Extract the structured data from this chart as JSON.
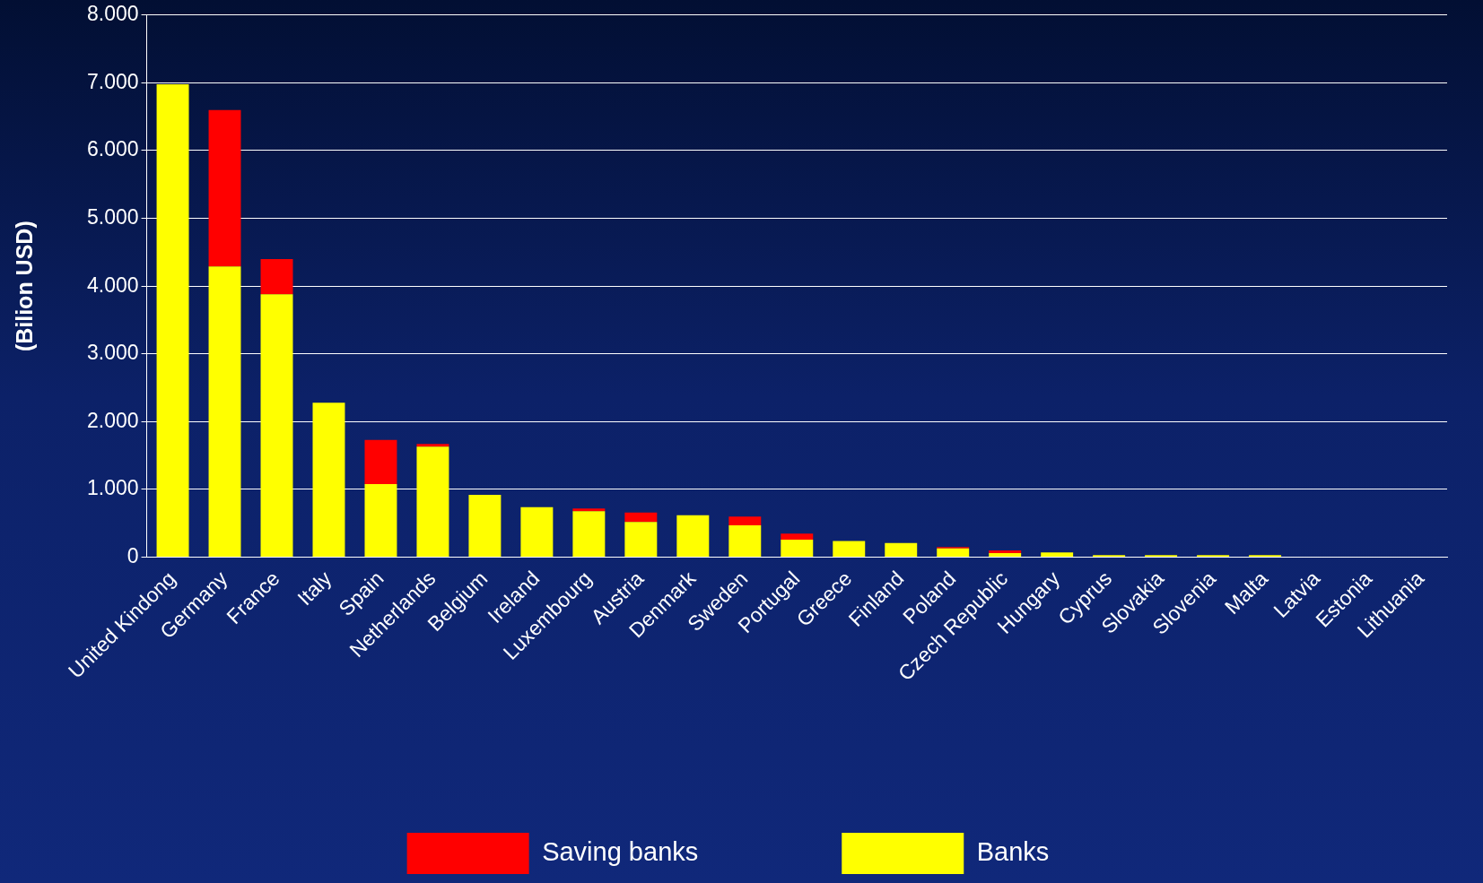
{
  "chart_data": {
    "type": "bar",
    "stacked": true,
    "ylabel": "(Bilion USD)",
    "categories": [
      "United Kindong",
      "Germany",
      "France",
      "Italy",
      "Spain",
      "Netherlands",
      "Belgium",
      "Ireland",
      "Luxembourg",
      "Austria",
      "Denmark",
      "Sweden",
      "Portugal",
      "Greece",
      "Finland",
      "Poland",
      "Czech Republic",
      "Hungary",
      "Cyprus",
      "Slovakia",
      "Slovenia",
      "Malta",
      "Latvia",
      "Estonia",
      "Lithuania"
    ],
    "series": [
      {
        "name": "Banks",
        "color": "#ffff00",
        "values": [
          6980,
          4290,
          3880,
          2280,
          1080,
          1630,
          920,
          740,
          680,
          520,
          620,
          470,
          260,
          240,
          210,
          130,
          60,
          70,
          30,
          30,
          30,
          30,
          0,
          0,
          0
        ]
      },
      {
        "name": "Saving banks",
        "color": "#ff0000",
        "values": [
          0,
          2310,
          520,
          0,
          650,
          40,
          0,
          0,
          40,
          140,
          0,
          130,
          90,
          0,
          0,
          20,
          40,
          0,
          0,
          0,
          0,
          0,
          0,
          0,
          0
        ]
      }
    ],
    "ylim": [
      0,
      8000
    ],
    "yticks": [
      {
        "value": 0,
        "label": "0"
      },
      {
        "value": 1000,
        "label": "1.000"
      },
      {
        "value": 2000,
        "label": "2.000"
      },
      {
        "value": 3000,
        "label": "3.000"
      },
      {
        "value": 4000,
        "label": "4.000"
      },
      {
        "value": 5000,
        "label": "5.000"
      },
      {
        "value": 6000,
        "label": "6.000"
      },
      {
        "value": 7000,
        "label": "7.000"
      },
      {
        "value": 8000,
        "label": "8.000"
      }
    ],
    "grid": "y",
    "legend": "bottom"
  }
}
